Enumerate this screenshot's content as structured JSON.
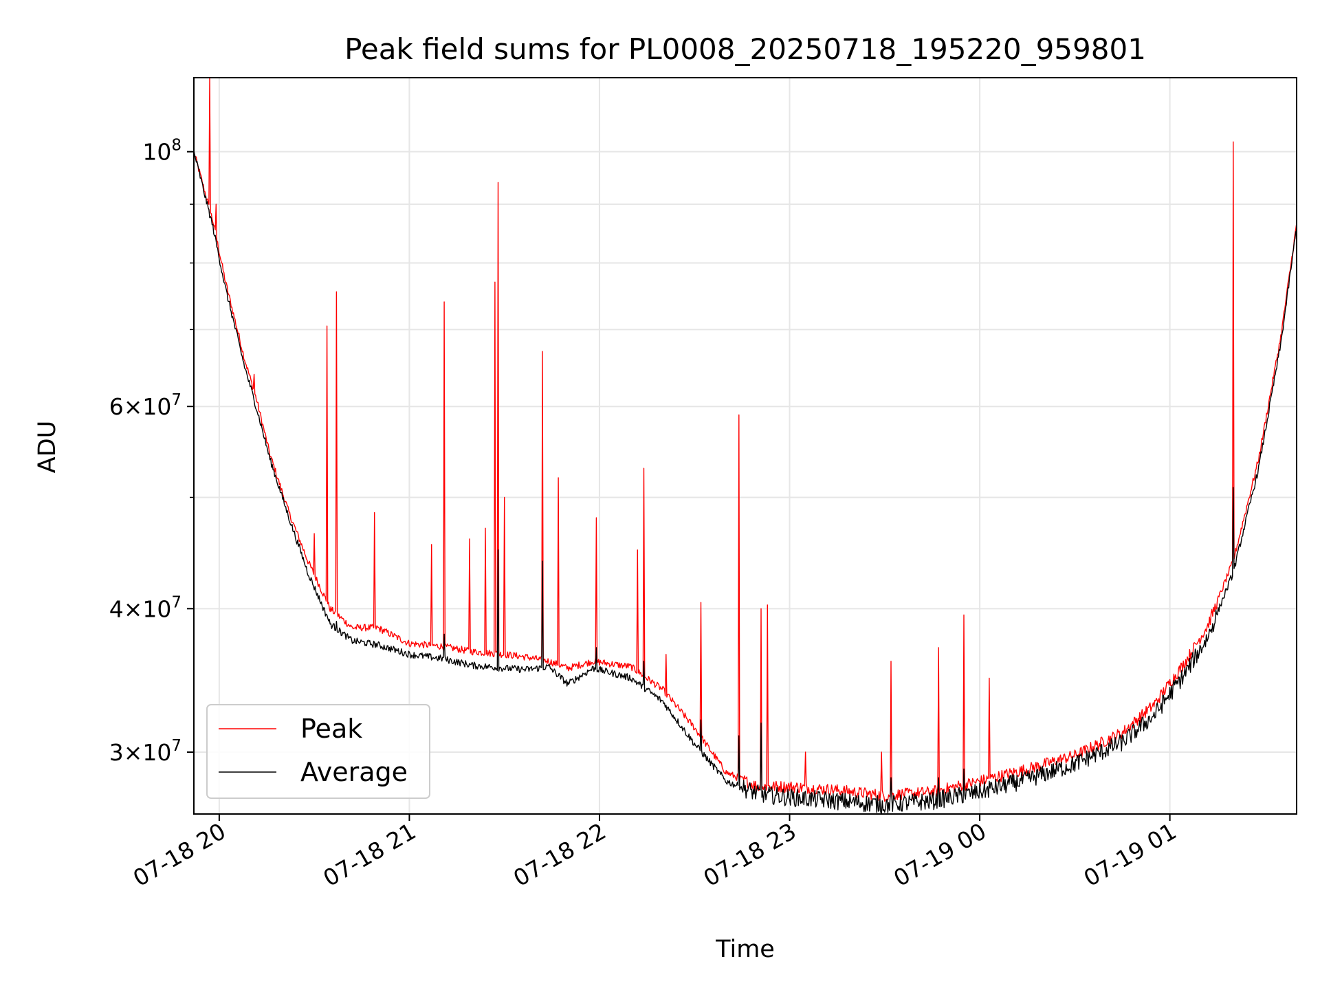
{
  "chart_data": {
    "type": "line",
    "title": "Peak field sums for PL0008_20250718_195220_959801",
    "xlabel": "Time",
    "ylabel": "ADU",
    "yscale": "log",
    "ylim": [
      26500000,
      116000000
    ],
    "xlim": [
      "2025-07-18 19:52",
      "2025-07-19 01:40"
    ],
    "x_ticks": [
      {
        "time": "2025-07-18 20:00",
        "label": "07-18 20"
      },
      {
        "time": "2025-07-18 21:00",
        "label": "07-18 21"
      },
      {
        "time": "2025-07-18 22:00",
        "label": "07-18 22"
      },
      {
        "time": "2025-07-18 23:00",
        "label": "07-18 23"
      },
      {
        "time": "2025-07-19 00:00",
        "label": "07-19 00"
      },
      {
        "time": "2025-07-19 01:00",
        "label": "07-19 01"
      }
    ],
    "y_major_ticks": [
      {
        "value": 100000000,
        "mantissa": "",
        "exponent": "8"
      },
      {
        "value": 60000000,
        "mantissa": "6",
        "exponent": "7"
      },
      {
        "value": 40000000,
        "mantissa": "4",
        "exponent": "7"
      },
      {
        "value": 30000000,
        "mantissa": "3",
        "exponent": "7"
      }
    ],
    "y_minor_ticks": [
      50000000,
      70000000,
      80000000,
      90000000
    ],
    "grid": true,
    "legend": "lower-left",
    "series": [
      {
        "name": "Peak",
        "color": "#ff0000",
        "baseline": [
          [
            "2025-07-18 19:52",
            100000000
          ],
          [
            "2025-07-18 19:58",
            87000000
          ],
          [
            "2025-07-18 20:02",
            77000000
          ],
          [
            "2025-07-18 20:08",
            66000000
          ],
          [
            "2025-07-18 20:12",
            60500000
          ],
          [
            "2025-07-18 20:16",
            54500000
          ],
          [
            "2025-07-18 20:22",
            48500000
          ],
          [
            "2025-07-18 20:28",
            44000000
          ],
          [
            "2025-07-18 20:35",
            40000000
          ],
          [
            "2025-07-18 20:42",
            38500000
          ],
          [
            "2025-07-18 20:50",
            38500000
          ],
          [
            "2025-07-18 21:00",
            37300000
          ],
          [
            "2025-07-18 21:10",
            37100000
          ],
          [
            "2025-07-18 21:20",
            36700000
          ],
          [
            "2025-07-18 21:30",
            36500000
          ],
          [
            "2025-07-18 21:37",
            36300000
          ],
          [
            "2025-07-18 21:44",
            36000000
          ],
          [
            "2025-07-18 21:50",
            35500000
          ],
          [
            "2025-07-18 21:58",
            36000000
          ],
          [
            "2025-07-18 22:10",
            35600000
          ],
          [
            "2025-07-18 22:20",
            34000000
          ],
          [
            "2025-07-18 22:30",
            31500000
          ],
          [
            "2025-07-18 22:40",
            28800000
          ],
          [
            "2025-07-18 22:50",
            28000000
          ],
          [
            "2025-07-18 23:00",
            28000000
          ],
          [
            "2025-07-18 23:15",
            27800000
          ],
          [
            "2025-07-18 23:30",
            27500000
          ],
          [
            "2025-07-18 23:45",
            27700000
          ],
          [
            "2025-07-19 00:00",
            28300000
          ],
          [
            "2025-07-19 00:15",
            29000000
          ],
          [
            "2025-07-19 00:30",
            29800000
          ],
          [
            "2025-07-19 00:45",
            31200000
          ],
          [
            "2025-07-19 00:55",
            33000000
          ],
          [
            "2025-07-19 01:05",
            36000000
          ],
          [
            "2025-07-19 01:12",
            38700000
          ],
          [
            "2025-07-19 01:20",
            44000000
          ],
          [
            "2025-07-19 01:28",
            54000000
          ],
          [
            "2025-07-19 01:35",
            69000000
          ],
          [
            "2025-07-19 01:40",
            86500000
          ]
        ],
        "spikes": [
          [
            "2025-07-18 19:57",
            116000000
          ],
          [
            "2025-07-18 19:59",
            90000000
          ],
          [
            "2025-07-18 20:11",
            64000000
          ],
          [
            "2025-07-18 20:30",
            46500000
          ],
          [
            "2025-07-18 20:34",
            70500000
          ],
          [
            "2025-07-18 20:37",
            75500000
          ],
          [
            "2025-07-18 20:49",
            48500000
          ],
          [
            "2025-07-18 21:07",
            45500000
          ],
          [
            "2025-07-18 21:11",
            74000000
          ],
          [
            "2025-07-18 21:19",
            46000000
          ],
          [
            "2025-07-18 21:24",
            47000000
          ],
          [
            "2025-07-18 21:27",
            77000000
          ],
          [
            "2025-07-18 21:28",
            94000000
          ],
          [
            "2025-07-18 21:30",
            50000000
          ],
          [
            "2025-07-18 21:42",
            67000000
          ],
          [
            "2025-07-18 21:47",
            52000000
          ],
          [
            "2025-07-18 21:59",
            48000000
          ],
          [
            "2025-07-18 22:12",
            45000000
          ],
          [
            "2025-07-18 22:14",
            53000000
          ],
          [
            "2025-07-18 22:21",
            36500000
          ],
          [
            "2025-07-18 22:32",
            40500000
          ],
          [
            "2025-07-18 22:44",
            59000000
          ],
          [
            "2025-07-18 22:51",
            40000000
          ],
          [
            "2025-07-18 22:53",
            40300000
          ],
          [
            "2025-07-18 23:05",
            30000000
          ],
          [
            "2025-07-18 23:29",
            30000000
          ],
          [
            "2025-07-18 23:32",
            36000000
          ],
          [
            "2025-07-18 23:47",
            37000000
          ],
          [
            "2025-07-18 23:55",
            39500000
          ],
          [
            "2025-07-19 00:03",
            34800000
          ],
          [
            "2025-07-19 01:20",
            102000000
          ],
          [
            "2025-07-19 01:27",
            50000000
          ]
        ]
      },
      {
        "name": "Average",
        "color": "#000000",
        "baseline": [
          [
            "2025-07-18 19:52",
            100000000
          ],
          [
            "2025-07-18 19:58",
            86000000
          ],
          [
            "2025-07-18 20:02",
            76000000
          ],
          [
            "2025-07-18 20:08",
            65000000
          ],
          [
            "2025-07-18 20:12",
            59500000
          ],
          [
            "2025-07-18 20:16",
            54000000
          ],
          [
            "2025-07-18 20:22",
            48000000
          ],
          [
            "2025-07-18 20:28",
            43000000
          ],
          [
            "2025-07-18 20:35",
            38800000
          ],
          [
            "2025-07-18 20:42",
            37500000
          ],
          [
            "2025-07-18 20:50",
            37200000
          ],
          [
            "2025-07-18 21:00",
            36500000
          ],
          [
            "2025-07-18 21:10",
            36200000
          ],
          [
            "2025-07-18 21:20",
            35700000
          ],
          [
            "2025-07-18 21:30",
            35500000
          ],
          [
            "2025-07-18 21:37",
            35400000
          ],
          [
            "2025-07-18 21:44",
            35600000
          ],
          [
            "2025-07-18 21:50",
            34400000
          ],
          [
            "2025-07-18 21:58",
            35500000
          ],
          [
            "2025-07-18 22:10",
            34800000
          ],
          [
            "2025-07-18 22:20",
            33200000
          ],
          [
            "2025-07-18 22:30",
            30500000
          ],
          [
            "2025-07-18 22:40",
            28300000
          ],
          [
            "2025-07-18 22:50",
            27600000
          ],
          [
            "2025-07-18 23:00",
            27400000
          ],
          [
            "2025-07-18 23:15",
            27200000
          ],
          [
            "2025-07-18 23:30",
            27000000
          ],
          [
            "2025-07-18 23:45",
            27200000
          ],
          [
            "2025-07-19 00:00",
            27700000
          ],
          [
            "2025-07-19 00:15",
            28400000
          ],
          [
            "2025-07-19 00:30",
            29300000
          ],
          [
            "2025-07-19 00:45",
            30600000
          ],
          [
            "2025-07-19 00:55",
            32300000
          ],
          [
            "2025-07-19 01:05",
            35200000
          ],
          [
            "2025-07-19 01:12",
            37800000
          ],
          [
            "2025-07-19 01:20",
            43000000
          ],
          [
            "2025-07-19 01:28",
            53000000
          ],
          [
            "2025-07-19 01:35",
            68000000
          ],
          [
            "2025-07-19 01:40",
            86000000
          ]
        ],
        "spikes": [
          [
            "2025-07-18 20:34",
            39500000
          ],
          [
            "2025-07-18 20:37",
            39000000
          ],
          [
            "2025-07-18 21:11",
            38000000
          ],
          [
            "2025-07-18 21:28",
            45000000
          ],
          [
            "2025-07-18 21:42",
            44000000
          ],
          [
            "2025-07-18 21:59",
            37000000
          ],
          [
            "2025-07-18 22:14",
            36000000
          ],
          [
            "2025-07-18 22:32",
            32000000
          ],
          [
            "2025-07-18 22:44",
            31000000
          ],
          [
            "2025-07-18 22:51",
            31800000
          ],
          [
            "2025-07-18 23:32",
            28500000
          ],
          [
            "2025-07-18 23:47",
            28500000
          ],
          [
            "2025-07-18 23:55",
            29000000
          ],
          [
            "2025-07-19 00:03",
            28300000
          ],
          [
            "2025-07-19 01:20",
            51000000
          ]
        ]
      }
    ]
  }
}
